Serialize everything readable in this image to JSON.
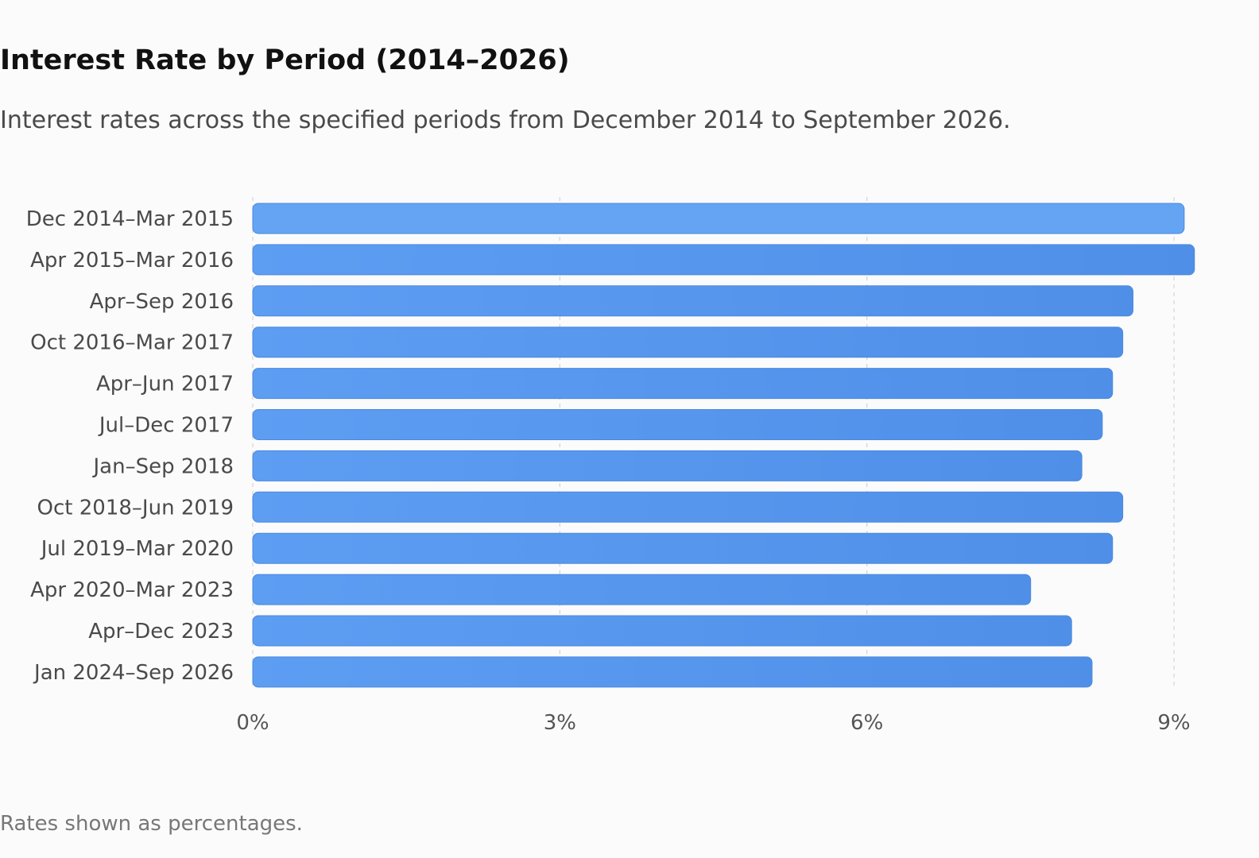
{
  "title": "Interest Rate by Period (2014–2026)",
  "subtitle": "Interest rates across the specified periods from December 2014 to September 2026.",
  "footnote": "Rates shown as percentages.",
  "chart_data": {
    "type": "bar",
    "orientation": "horizontal",
    "categories": [
      "Dec 2014–Mar 2015",
      "Apr 2015–Mar 2016",
      "Apr–Sep 2016",
      "Oct 2016–Mar 2017",
      "Apr–Jun 2017",
      "Jul–Dec 2017",
      "Jan–Sep 2018",
      "Oct 2018–Jun 2019",
      "Jul 2019–Mar 2020",
      "Apr 2020–Mar 2023",
      "Apr–Dec 2023",
      "Jan 2024–Sep 2026"
    ],
    "values": [
      9.1,
      9.2,
      8.6,
      8.5,
      8.4,
      8.3,
      8.1,
      8.5,
      8.4,
      7.6,
      8.0,
      8.2
    ],
    "xlim": [
      0,
      9
    ],
    "xticks": [
      0,
      3,
      6,
      9
    ],
    "xtick_labels": [
      "0%",
      "3%",
      "6%",
      "9%"
    ],
    "grid": true,
    "bar_color": "#5599f0",
    "legend": "none"
  }
}
